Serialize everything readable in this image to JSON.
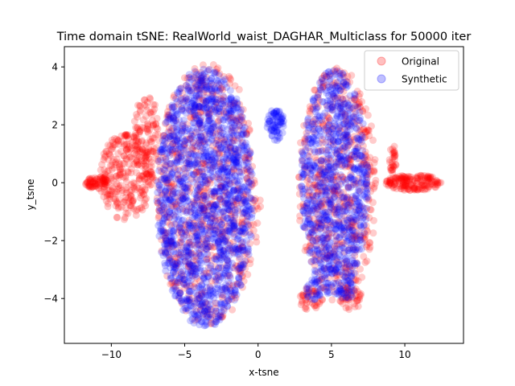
{
  "chart_data": {
    "type": "scatter",
    "title": "Time domain tSNE: RealWorld_waist_DAGHAR_Multiclass for 50000 iter",
    "xlabel": "x-tsne",
    "ylabel": "y_tsne",
    "xlim": [
      -13.2,
      14.0
    ],
    "ylim": [
      -5.55,
      4.7
    ],
    "xticks": [
      -10,
      -5,
      0,
      5,
      10
    ],
    "yticks": [
      -4,
      -2,
      0,
      2,
      4
    ],
    "xtick_labels": [
      "−10",
      "−5",
      "0",
      "5",
      "10"
    ],
    "ytick_labels": [
      "−4",
      "−2",
      "0",
      "2",
      "4"
    ],
    "grid": false,
    "legend_position": "top-right",
    "series": [
      {
        "name": "Original",
        "color": "#ff0000",
        "alpha": 0.2,
        "regions": [
          {
            "shape": "ellipse",
            "cx": -3.4,
            "cy": -0.4,
            "rx": 3.6,
            "ry": 4.5,
            "count": 700
          },
          {
            "shape": "ellipse",
            "cx": -9.0,
            "cy": 0.2,
            "rx": 1.8,
            "ry": 1.5,
            "count": 260
          },
          {
            "shape": "ellipse",
            "cx": -7.6,
            "cy": 1.5,
            "rx": 0.9,
            "ry": 1.6,
            "count": 120
          },
          {
            "shape": "ellipse",
            "cx": -11.0,
            "cy": 0.0,
            "rx": 0.8,
            "ry": 0.2,
            "count": 70
          },
          {
            "shape": "ellipse",
            "cx": 5.4,
            "cy": -0.1,
            "rx": 2.7,
            "ry": 4.1,
            "count": 520
          },
          {
            "shape": "ellipse",
            "cx": 10.6,
            "cy": 0.0,
            "rx": 1.9,
            "ry": 0.28,
            "count": 170
          },
          {
            "shape": "ellipse",
            "cx": 9.2,
            "cy": 0.8,
            "rx": 0.25,
            "ry": 0.5,
            "count": 30
          },
          {
            "shape": "ellipse",
            "cx": 3.6,
            "cy": -4.0,
            "rx": 0.8,
            "ry": 0.4,
            "count": 40
          },
          {
            "shape": "ellipse",
            "cx": 6.3,
            "cy": -4.0,
            "rx": 0.8,
            "ry": 0.4,
            "count": 40
          }
        ]
      },
      {
        "name": "Synthetic",
        "color": "#0000ff",
        "alpha": 0.2,
        "regions": [
          {
            "shape": "ellipse",
            "cx": -3.6,
            "cy": -0.5,
            "rx": 3.3,
            "ry": 4.5,
            "count": 1500
          },
          {
            "shape": "ellipse",
            "cx": 5.2,
            "cy": 0.0,
            "rx": 2.3,
            "ry": 3.9,
            "count": 850
          },
          {
            "shape": "ellipse",
            "cx": 1.2,
            "cy": 2.0,
            "rx": 0.6,
            "ry": 0.55,
            "count": 70
          },
          {
            "shape": "ellipse",
            "cx": 3.8,
            "cy": -3.7,
            "rx": 0.6,
            "ry": 0.35,
            "count": 30
          },
          {
            "shape": "ellipse",
            "cx": 6.0,
            "cy": -3.7,
            "rx": 0.6,
            "ry": 0.35,
            "count": 30
          }
        ]
      }
    ]
  }
}
